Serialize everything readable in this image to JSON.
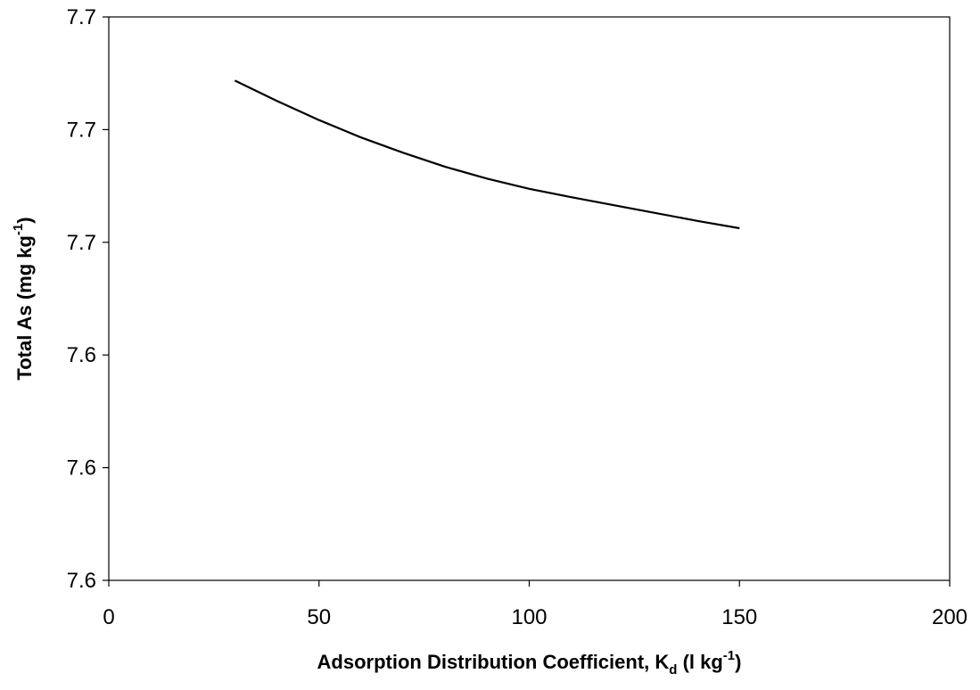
{
  "chart_data": {
    "type": "line",
    "title": "",
    "xlabel": {
      "main": "Adsorption Distribution Coefficient, K",
      "sub": "d",
      "unit_open": " (l kg",
      "sup": "-1",
      "unit_close": ")"
    },
    "ylabel": {
      "main": "Total As (mg kg",
      "sup": "-1",
      "close": ")"
    },
    "xlim": [
      0,
      200
    ],
    "ylim": [
      7.6,
      7.7
    ],
    "x_ticks": [
      0,
      50,
      100,
      150,
      200
    ],
    "x_tick_labels": [
      "0",
      "50",
      "100",
      "150",
      "200"
    ],
    "y_ticks": [
      7.6,
      7.62,
      7.64,
      7.66,
      7.68,
      7.7
    ],
    "y_tick_labels": [
      "7.6",
      "7.6",
      "7.6",
      "7.7",
      "7.7",
      "7.7"
    ],
    "grid": false,
    "legend": "none",
    "series": [
      {
        "color": "#000000",
        "x": [
          30,
          40,
          50,
          60,
          70,
          80,
          90,
          100,
          110,
          120,
          130,
          140,
          150
        ],
        "y": [
          7.6887,
          7.6851,
          7.6817,
          7.6786,
          7.6759,
          7.6734,
          7.6713,
          7.6695,
          7.668,
          7.6666,
          7.6652,
          7.6638,
          7.6625
        ]
      }
    ]
  }
}
